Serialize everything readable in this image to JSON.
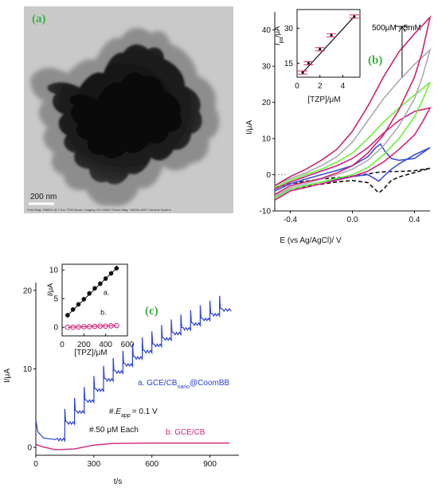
{
  "panel_a": {
    "label": "(a)",
    "scale_bar_label": "200 nm",
    "footer_text": [
      "Print Mag: 26800x @ 7.0 in   TEM Mode: Imaging   HV=200kV   Direct Mag: 20000x   AMT Camera System"
    ]
  },
  "chart_data": [
    {
      "id": "b",
      "type": "line",
      "panel_label": "(b)",
      "xlabel": "E (vs Ag/AgCl)/ V",
      "ylabel": "I/μA",
      "xlim": [
        -0.5,
        0.5
      ],
      "ylim": [
        -10,
        45
      ],
      "xticks": [
        "-0.4",
        "0.0",
        "0.4"
      ],
      "xtick_values": [
        -0.4,
        0.0,
        0.4
      ],
      "yticks": [
        "-10",
        "0",
        "10",
        "20",
        "30",
        "40"
      ],
      "ytick_values": [
        -10,
        0,
        10,
        20,
        30,
        40
      ],
      "annotation": "500μM - 5mM",
      "series": [
        {
          "color": "#111111",
          "dashed": true,
          "forward": [
            [
              -0.5,
              -3.5
            ],
            [
              -0.4,
              -2.5
            ],
            [
              -0.3,
              -1.8
            ],
            [
              -0.2,
              -1.2
            ],
            [
              -0.1,
              -0.8
            ],
            [
              0.0,
              -0.4
            ],
            [
              0.1,
              0.2
            ],
            [
              0.15,
              0.6
            ],
            [
              0.2,
              0.8
            ],
            [
              0.25,
              0.9
            ],
            [
              0.3,
              0.9
            ],
            [
              0.4,
              1.1
            ],
            [
              0.5,
              1.8
            ]
          ],
          "reverse": [
            [
              0.5,
              1.8
            ],
            [
              0.4,
              0.6
            ],
            [
              0.3,
              -0.6
            ],
            [
              0.25,
              -1.6
            ],
            [
              0.2,
              -4.0
            ],
            [
              0.17,
              -5.0
            ],
            [
              0.14,
              -3.8
            ],
            [
              0.1,
              -2.2
            ],
            [
              0.0,
              -1.6
            ],
            [
              -0.1,
              -2.0
            ],
            [
              -0.2,
              -2.6
            ],
            [
              -0.3,
              -3.2
            ],
            [
              -0.4,
              -4.0
            ],
            [
              -0.5,
              -6.5
            ]
          ]
        },
        {
          "color": "#3b4fd8",
          "dashed": false,
          "forward": [
            [
              -0.5,
              -4.5
            ],
            [
              -0.4,
              -2.5
            ],
            [
              -0.3,
              -1.2
            ],
            [
              -0.2,
              0.0
            ],
            [
              -0.1,
              1.2
            ],
            [
              0.0,
              2.5
            ],
            [
              0.1,
              5.0
            ],
            [
              0.15,
              7.5
            ],
            [
              0.18,
              8.5
            ],
            [
              0.21,
              6.5
            ],
            [
              0.25,
              4.5
            ],
            [
              0.3,
              4.0
            ],
            [
              0.4,
              4.5
            ],
            [
              0.5,
              7.5
            ]
          ],
          "reverse": [
            [
              0.5,
              7.5
            ],
            [
              0.4,
              5.5
            ],
            [
              0.3,
              3.0
            ],
            [
              0.25,
              1.5
            ],
            [
              0.2,
              -0.5
            ],
            [
              0.17,
              -1.8
            ],
            [
              0.14,
              -1.0
            ],
            [
              0.1,
              0.0
            ],
            [
              0.0,
              -0.5
            ],
            [
              -0.1,
              -1.2
            ],
            [
              -0.2,
              -2.0
            ],
            [
              -0.3,
              -3.0
            ],
            [
              -0.4,
              -4.0
            ],
            [
              -0.5,
              -6.5
            ]
          ]
        },
        {
          "color": "#d0237a",
          "dashed": false,
          "forward": [
            [
              -0.5,
              -4.0
            ],
            [
              -0.4,
              -2.0
            ],
            [
              -0.3,
              -0.5
            ],
            [
              -0.2,
              1.0
            ],
            [
              -0.1,
              2.5
            ],
            [
              0.0,
              4.5
            ],
            [
              0.1,
              7.5
            ],
            [
              0.2,
              11.5
            ],
            [
              0.3,
              15.0
            ],
            [
              0.4,
              17.5
            ],
            [
              0.45,
              18.0
            ],
            [
              0.5,
              18.5
            ]
          ],
          "reverse": [
            [
              0.5,
              18.5
            ],
            [
              0.45,
              14.5
            ],
            [
              0.4,
              11.0
            ],
            [
              0.3,
              7.0
            ],
            [
              0.2,
              3.5
            ],
            [
              0.1,
              1.0
            ],
            [
              0.0,
              -0.5
            ],
            [
              -0.1,
              -1.5
            ],
            [
              -0.2,
              -2.5
            ],
            [
              -0.3,
              -3.5
            ],
            [
              -0.4,
              -4.5
            ],
            [
              -0.5,
              -7.0
            ]
          ]
        },
        {
          "color": "#6cf03a",
          "dashed": false,
          "forward": [
            [
              -0.5,
              -3.5
            ],
            [
              -0.4,
              -1.5
            ],
            [
              -0.3,
              0.0
            ],
            [
              -0.2,
              1.5
            ],
            [
              -0.1,
              3.5
            ],
            [
              0.0,
              6.0
            ],
            [
              0.1,
              10.0
            ],
            [
              0.2,
              14.5
            ],
            [
              0.3,
              18.5
            ],
            [
              0.4,
              22.0
            ],
            [
              0.5,
              25.5
            ]
          ],
          "reverse": [
            [
              0.5,
              25.5
            ],
            [
              0.45,
              20.5
            ],
            [
              0.4,
              16.0
            ],
            [
              0.3,
              10.0
            ],
            [
              0.2,
              5.5
            ],
            [
              0.1,
              2.0
            ],
            [
              0.0,
              0.0
            ],
            [
              -0.1,
              -1.0
            ],
            [
              -0.2,
              -2.0
            ],
            [
              -0.3,
              -3.0
            ],
            [
              -0.4,
              -4.0
            ],
            [
              -0.5,
              -6.5
            ]
          ]
        },
        {
          "color": "#a9a9b3",
          "dashed": false,
          "forward": [
            [
              -0.5,
              -3.0
            ],
            [
              -0.4,
              -1.0
            ],
            [
              -0.3,
              0.5
            ],
            [
              -0.2,
              2.5
            ],
            [
              -0.1,
              5.0
            ],
            [
              0.0,
              9.0
            ],
            [
              0.1,
              15.0
            ],
            [
              0.2,
              21.0
            ],
            [
              0.3,
              26.0
            ],
            [
              0.4,
              30.5
            ],
            [
              0.5,
              34.5
            ]
          ],
          "reverse": [
            [
              0.5,
              34.5
            ],
            [
              0.45,
              27.0
            ],
            [
              0.4,
              21.0
            ],
            [
              0.3,
              13.5
            ],
            [
              0.2,
              8.0
            ],
            [
              0.1,
              4.0
            ],
            [
              0.0,
              1.5
            ],
            [
              -0.1,
              0.0
            ],
            [
              -0.2,
              -1.2
            ],
            [
              -0.3,
              -2.5
            ],
            [
              -0.4,
              -3.5
            ],
            [
              -0.5,
              -6.0
            ]
          ]
        },
        {
          "color": "#c8266f",
          "dashed": false,
          "forward": [
            [
              -0.5,
              -3.0
            ],
            [
              -0.4,
              -0.5
            ],
            [
              -0.3,
              1.5
            ],
            [
              -0.2,
              4.0
            ],
            [
              -0.1,
              7.0
            ],
            [
              0.0,
              12.0
            ],
            [
              0.1,
              19.0
            ],
            [
              0.2,
              27.0
            ],
            [
              0.3,
              34.0
            ],
            [
              0.4,
              39.0
            ],
            [
              0.5,
              43.5
            ]
          ],
          "reverse": [
            [
              0.5,
              43.5
            ],
            [
              0.45,
              34.0
            ],
            [
              0.4,
              27.0
            ],
            [
              0.3,
              18.0
            ],
            [
              0.2,
              11.0
            ],
            [
              0.1,
              6.0
            ],
            [
              0.0,
              2.5
            ],
            [
              -0.1,
              0.5
            ],
            [
              -0.2,
              -1.0
            ],
            [
              -0.3,
              -2.0
            ],
            [
              -0.4,
              -3.0
            ],
            [
              -0.5,
              -5.5
            ]
          ]
        }
      ]
    },
    {
      "id": "b-inset",
      "type": "scatter",
      "xlabel": "[TZP]/μM",
      "ylabel": "Ipa/μA",
      "xlim": [
        0,
        5.5
      ],
      "ylim": [
        9,
        38
      ],
      "xticks": [
        "0",
        "2",
        "4"
      ],
      "xtick_values": [
        0,
        2,
        4
      ],
      "yticks": [
        "15",
        "30"
      ],
      "ytick_values": [
        15,
        30
      ],
      "x": [
        0.5,
        1.0,
        2.0,
        3.0,
        5.0
      ],
      "y": [
        11.0,
        15.0,
        21.0,
        27.0,
        35.0
      ],
      "fit_line": [
        [
          0.5,
          11.0
        ],
        [
          5.0,
          35.0
        ]
      ]
    },
    {
      "id": "c",
      "type": "line",
      "panel_label": "(c)",
      "xlabel": "t/s",
      "ylabel": "I/μA",
      "xlim": [
        0,
        1050
      ],
      "ylim": [
        -1,
        21
      ],
      "xticks": [
        "0",
        "300",
        "600",
        "900"
      ],
      "xtick_values": [
        0,
        300,
        600,
        900
      ],
      "yticks": [
        "0",
        "10",
        "20"
      ],
      "ytick_values": [
        0,
        10,
        20
      ],
      "series": [
        {
          "name": "a. GCE/CBnano@CoomBB",
          "color": "#2a3fd4",
          "initial": [
            [
              0,
              3.5
            ],
            [
              10,
              2.0
            ],
            [
              40,
              1.2
            ],
            [
              100,
              1.0
            ]
          ],
          "steps": [
            [
              100,
              1.0
            ],
            [
              150,
              3.1
            ],
            [
              200,
              4.5
            ],
            [
              250,
              5.9
            ],
            [
              300,
              7.3
            ],
            [
              350,
              8.6
            ],
            [
              400,
              9.6
            ],
            [
              450,
              10.5
            ],
            [
              500,
              11.4
            ],
            [
              550,
              12.2
            ],
            [
              600,
              13.0
            ],
            [
              650,
              13.8
            ],
            [
              700,
              14.5
            ],
            [
              750,
              15.1
            ],
            [
              800,
              15.7
            ],
            [
              850,
              16.3
            ],
            [
              900,
              16.9
            ],
            [
              950,
              17.5
            ]
          ],
          "end_time": 1010
        },
        {
          "name": "b. GCE/CB",
          "color": "#d0237a",
          "points": [
            [
              0,
              0.4
            ],
            [
              30,
              0.1
            ],
            [
              100,
              -0.3
            ],
            [
              200,
              -0.2
            ],
            [
              300,
              0.3
            ],
            [
              400,
              0.5
            ],
            [
              600,
              0.55
            ],
            [
              800,
              0.55
            ],
            [
              1000,
              0.55
            ]
          ]
        }
      ],
      "annotations": {
        "label_a": "a. GCE/CB",
        "label_a_sub": "nano",
        "label_a_end": "@CoomBB",
        "eapp_prefix": "#.",
        "eapp_var": "E",
        "eapp_sub": "app",
        "eapp_value": "= 0.1 V",
        "each": "#.50 μM Each",
        "label_b": "b. GCE/CB"
      }
    },
    {
      "id": "c-inset",
      "type": "scatter",
      "xlabel": "[TPZ]/μM",
      "ylabel": "I/μA",
      "xlim": [
        0,
        600
      ],
      "ylim": [
        -1.5,
        11
      ],
      "xticks": [
        "0",
        "200",
        "400",
        "600"
      ],
      "xtick_values": [
        0,
        200,
        400,
        600
      ],
      "yticks": [
        "0",
        "5",
        "10"
      ],
      "ytick_values": [
        0,
        5,
        10
      ],
      "series": [
        {
          "name": "a.",
          "color": "#111111",
          "x": [
            50,
            100,
            150,
            200,
            250,
            300,
            350,
            400,
            450,
            500
          ],
          "y": [
            2.1,
            3.1,
            4.0,
            4.9,
            5.9,
            6.8,
            7.6,
            8.5,
            9.4,
            10.3
          ]
        },
        {
          "name": "b.",
          "color": "#d0237a",
          "x": [
            50,
            100,
            150,
            200,
            250,
            300,
            350,
            400,
            450,
            500
          ],
          "y": [
            0.0,
            0.0,
            0.05,
            0.1,
            0.1,
            0.15,
            0.2,
            0.2,
            0.25,
            0.3
          ]
        }
      ]
    }
  ]
}
